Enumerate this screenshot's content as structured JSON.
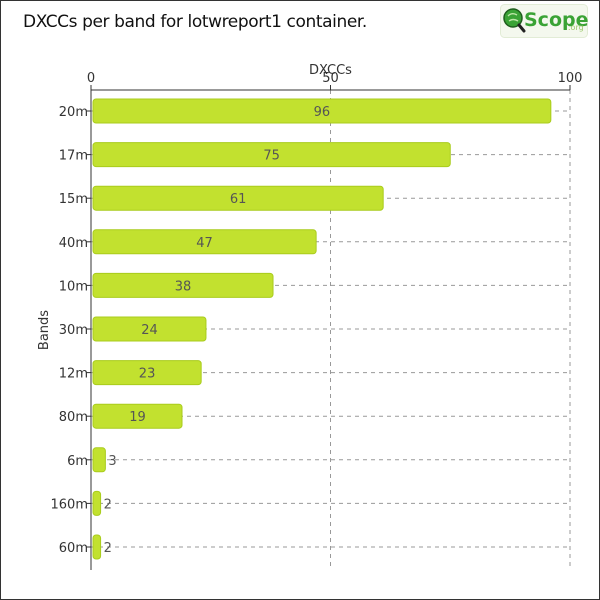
{
  "page": {
    "title": "DXCCs per band for lotwreport1 container."
  },
  "logo": {
    "text": "Scope",
    "suffix": ".org",
    "colors": {
      "green": "#3aa335",
      "light": "#9bc96a"
    }
  },
  "chart_data": {
    "type": "bar",
    "orientation": "horizontal",
    "xlabel": "DXCCs",
    "ylabel": "Bands",
    "xlim": [
      0,
      100
    ],
    "x_ticks": [
      0,
      50,
      100
    ],
    "x_axis_position": "top",
    "grid": true,
    "categories": [
      "20m",
      "17m",
      "15m",
      "40m",
      "10m",
      "30m",
      "12m",
      "80m",
      "6m",
      "160m",
      "60m"
    ],
    "values": [
      96,
      75,
      61,
      47,
      38,
      24,
      23,
      19,
      3,
      2,
      2
    ],
    "bar_color": "#c2e12f",
    "bar_edge_color": "#a9cc1c"
  }
}
